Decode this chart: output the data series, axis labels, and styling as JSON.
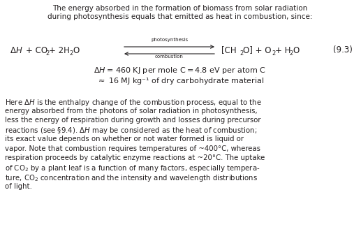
{
  "bg_color": "#ffffff",
  "text_color": "#231f20",
  "title_line1": "The energy absorbed in the formation of biomass from solar radiation",
  "title_line2": "during photosynthesis equals that emitted as heat in combustion, since:",
  "body_lines": [
    "Here ΔH is the enthalpy change of the combustion process, equal to the",
    "energy absorbed from the photons of solar radiation in photosynthesis,",
    "less the energy of respiration during growth and losses during precursor",
    "reactions (see §9.4). ΔH may be considered as the heat of combustion;",
    "its exact value depends on whether or not water formed is liquid or",
    "vapor. Note that combustion requires temperatures of ~400°C, whereas",
    "respiration proceeds by catalytic enzyme reactions at ~20°C. The uptake",
    "of CO₂ by a plant leaf is a function of many factors, especially tempera-",
    "ture, CO₂ concentration and the intensity and wavelength distributions",
    "of light."
  ]
}
